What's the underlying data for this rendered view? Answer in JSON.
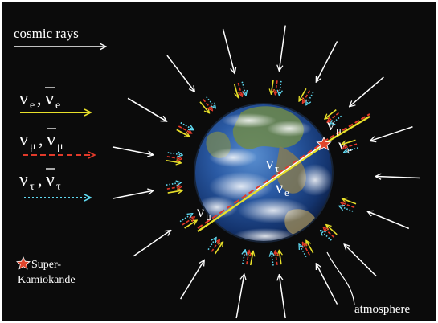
{
  "legend": {
    "cosmic_rays": "cosmic rays",
    "nu_e_sym": "ν",
    "e_sub": "e",
    "nu_mu_sym": "ν",
    "mu_sub": "μ",
    "nu_tau_sym": "ν",
    "tau_sub": "τ",
    "separator": ",",
    "super_kamiokande_line1": "Super-",
    "super_kamiokande_line2": "Kamiokande"
  },
  "earth_labels": {
    "nu_mu_top": "ν",
    "mu_top_sub": "μ",
    "nu_e_right": "ν",
    "e_right_sub": "e",
    "nu_tau_center": "ν",
    "tau_center_sub": "τ",
    "nu_e_center": "ν",
    "e_center_sub": "e",
    "nu_mu_bottom": "ν",
    "mu_bottom_sub": "μ"
  },
  "atmosphere_label": "atmosphere",
  "colors": {
    "background": "#0b0b0b",
    "cosmic_ray": "#ffffff",
    "electron_neutrino": "#e8e02a",
    "muon_neutrino": "#e23a2a",
    "tau_neutrino": "#5fd8f0",
    "ocean": "#1c4f9a",
    "detector_star": "#e0452c"
  },
  "icons": {
    "detector": "star-icon"
  }
}
